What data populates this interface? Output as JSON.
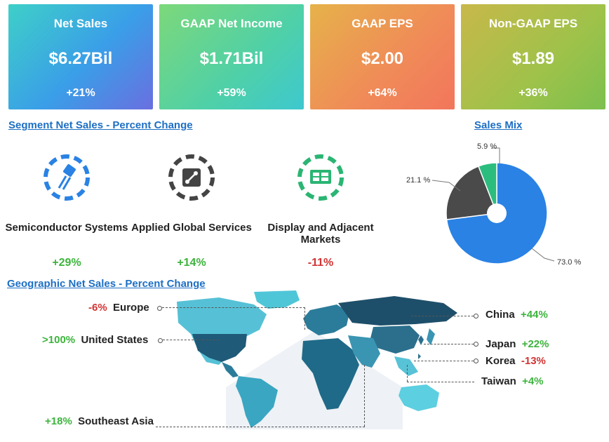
{
  "kpis": [
    {
      "label": "Net Sales",
      "value": "$6.27Bil",
      "change": "+21%"
    },
    {
      "label": "GAAP Net Income",
      "value": "$1.71Bil",
      "change": "+59%"
    },
    {
      "label": "GAAP EPS",
      "value": "$2.00",
      "change": "+64%"
    },
    {
      "label": "Non-GAAP EPS",
      "value": "$1.89",
      "change": "+36%"
    }
  ],
  "segments": {
    "title": "Segment Net Sales - Percent Change",
    "items": [
      {
        "name": "Semiconductor Systems",
        "change": "+29%",
        "icon": "semiconductor-icon"
      },
      {
        "name": "Applied Global Services",
        "change": "+14%",
        "icon": "services-icon"
      },
      {
        "name": "Display and Adjacent Markets",
        "change": "-11%",
        "icon": "display-icon"
      }
    ]
  },
  "chart_data": {
    "type": "pie",
    "title": "Sales Mix",
    "slices": [
      {
        "value": 73.0,
        "label": "73.0 %",
        "color": "#2a82e4"
      },
      {
        "value": 21.1,
        "label": "21.1 %",
        "color": "#4a4a4a"
      },
      {
        "value": 5.9,
        "label": "5.9 %",
        "color": "#2bbd7e"
      }
    ]
  },
  "geo": {
    "title": "Geographic Net Sales - Percent Change",
    "regions": [
      {
        "name": "Europe",
        "change": "-6%"
      },
      {
        "name": "United States",
        "change": ">100%"
      },
      {
        "name": "Southeast Asia",
        "change": "+18%"
      },
      {
        "name": "China",
        "change": "+44%"
      },
      {
        "name": "Japan",
        "change": "+22%"
      },
      {
        "name": "Korea",
        "change": "-13%"
      },
      {
        "name": "Taiwan",
        "change": "+4%"
      }
    ]
  },
  "colors": {
    "positive": "#3cb43c",
    "negative": "#d23434",
    "link": "#1d6fc4"
  }
}
